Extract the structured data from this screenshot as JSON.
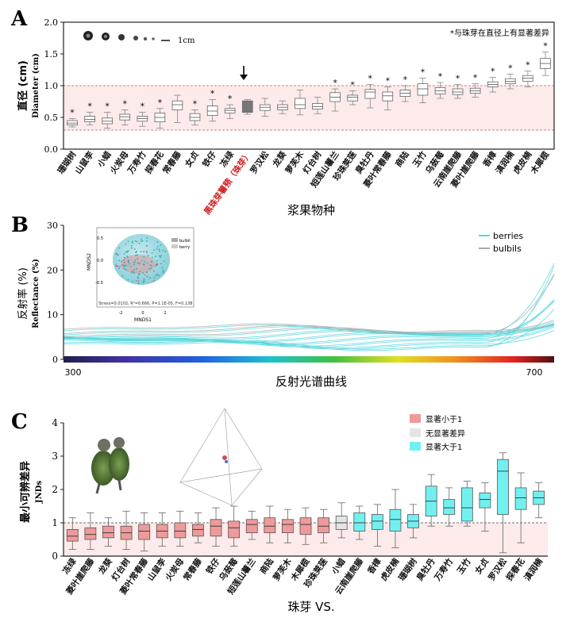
{
  "chart_data": [
    {
      "panel": "A",
      "type": "box",
      "ylabel_cn": "直径 (cm)",
      "ylabel_en": "Diameter (cm)",
      "xlabel": "浆果物种",
      "note": "*与珠芽在直径上有显著差异",
      "scale_label": "1cm",
      "ylim": [
        0,
        2.0
      ],
      "yticks": [
        "0.0",
        "0.5",
        "1.0",
        "1.5",
        "2.0"
      ],
      "band": [
        0.3,
        1.0
      ],
      "categories": [
        "珊瑚树",
        "山鼠李",
        "小蜡",
        "火炭母",
        "万寿竹",
        "探春花",
        "常春藤",
        "女贞",
        "铁仔",
        "冻绿",
        "黑珠芽薯蓣（珠芽）",
        "罗汉松",
        "龙葵",
        "萝芙木",
        "灯台树",
        "短莲山薯兰",
        "珍珠荚蒾",
        "臭牡丹",
        "菱叶常春藤",
        "商陆",
        "玉竹",
        "乌蔹莓",
        "云南崖爬藤",
        "菱叶崖爬藤",
        "香樟",
        "滇润楠",
        "虎皮楠",
        "木犀榄"
      ],
      "highlight": "黑珠芽薯蓣（珠芽）",
      "boxes": [
        [
          0.35,
          0.38,
          0.41,
          0.45,
          0.48
        ],
        [
          0.38,
          0.43,
          0.47,
          0.52,
          0.58
        ],
        [
          0.33,
          0.4,
          0.44,
          0.49,
          0.58
        ],
        [
          0.38,
          0.46,
          0.51,
          0.55,
          0.62
        ],
        [
          0.36,
          0.44,
          0.48,
          0.52,
          0.58
        ],
        [
          0.33,
          0.43,
          0.5,
          0.57,
          0.64
        ],
        [
          0.42,
          0.62,
          0.7,
          0.76,
          0.85
        ],
        [
          0.38,
          0.45,
          0.5,
          0.56,
          0.62
        ],
        [
          0.44,
          0.53,
          0.6,
          0.68,
          0.78
        ],
        [
          0.48,
          0.57,
          0.61,
          0.64,
          0.7
        ],
        [
          0.55,
          0.58,
          0.67,
          0.76,
          0.78
        ],
        [
          0.52,
          0.61,
          0.66,
          0.7,
          0.8
        ],
        [
          0.56,
          0.62,
          0.66,
          0.7,
          0.76
        ],
        [
          0.54,
          0.64,
          0.7,
          0.8,
          0.93
        ],
        [
          0.56,
          0.63,
          0.67,
          0.72,
          0.82
        ],
        [
          0.6,
          0.75,
          0.82,
          0.89,
          0.95
        ],
        [
          0.7,
          0.76,
          0.82,
          0.85,
          0.92
        ],
        [
          0.65,
          0.8,
          0.9,
          0.94,
          1.02
        ],
        [
          0.62,
          0.76,
          0.84,
          0.9,
          0.98
        ],
        [
          0.75,
          0.83,
          0.88,
          0.93,
          1.0
        ],
        [
          0.73,
          0.85,
          0.95,
          1.03,
          1.12
        ],
        [
          0.8,
          0.87,
          0.92,
          0.97,
          1.05
        ],
        [
          0.8,
          0.86,
          0.9,
          0.95,
          1.02
        ],
        [
          0.82,
          0.88,
          0.92,
          0.96,
          1.03
        ],
        [
          0.9,
          0.98,
          1.02,
          1.06,
          1.13
        ],
        [
          0.95,
          1.03,
          1.07,
          1.11,
          1.18
        ],
        [
          0.98,
          1.07,
          1.12,
          1.16,
          1.23
        ],
        [
          1.16,
          1.27,
          1.35,
          1.43,
          1.53
        ]
      ],
      "significant": [
        1,
        1,
        1,
        1,
        1,
        1,
        0,
        1,
        1,
        1,
        0,
        0,
        0,
        0,
        0,
        1,
        1,
        1,
        1,
        1,
        1,
        1,
        1,
        1,
        1,
        1,
        1,
        1
      ]
    },
    {
      "panel": "B",
      "type": "line",
      "ylabel_cn": "反射率 (%)",
      "ylabel_en": "Reflectance (%)",
      "xlabel": "反射光谱曲线",
      "xlim": [
        300,
        700
      ],
      "xticks": [
        "300",
        "700"
      ],
      "ylim": [
        0,
        30
      ],
      "yticks": [
        "0",
        "10",
        "20",
        "30"
      ],
      "legend": [
        "berries",
        "bulbils"
      ],
      "colors": {
        "berries": "#4fd6dc",
        "bulbils": "#a8a8a8"
      },
      "inset": {
        "xlabel": "MNDS1",
        "ylabel": "MNDS2",
        "legend": [
          "bulbil",
          "berry"
        ],
        "stress_text": "Stress=0.0102, R²=0.666, P=1.1E-05, F=0.138",
        "xticks": [
          "-2",
          "0",
          "2"
        ],
        "yticks": [
          "0.5",
          "0.0",
          "-0.5"
        ]
      }
    },
    {
      "panel": "C",
      "type": "box",
      "ylabel_cn": "最小可辨差异",
      "ylabel_en": "JNDs",
      "xlabel": "珠芽 VS.",
      "ylim": [
        0,
        4
      ],
      "yticks": [
        "0",
        "1",
        "2",
        "3",
        "4"
      ],
      "legend": [
        "显著小于1",
        "无显著差异",
        "显著大于1"
      ],
      "colors": {
        "lt1": "#ef9a9a",
        "ns": "#e4e4e4",
        "gt1": "#72f0f0"
      },
      "categories": [
        "冻绿",
        "菱叶崖爬藤",
        "龙葵",
        "灯台树",
        "菱叶常春藤",
        "山鼠李",
        "火炭母",
        "常春藤",
        "铁仔",
        "乌蔹莓",
        "短莲山薯兰",
        "商陆",
        "萝芙木",
        "木犀榄",
        "珍珠荚蒾",
        "小蜡",
        "云南崖爬藤",
        "香樟",
        "虎皮楠",
        "珊瑚树",
        "臭牡丹",
        "万寿竹",
        "玉竹",
        "女贞",
        "罗汉松",
        "探春花",
        "滇润楠"
      ],
      "groups": [
        "lt1",
        "lt1",
        "lt1",
        "lt1",
        "lt1",
        "lt1",
        "lt1",
        "lt1",
        "lt1",
        "lt1",
        "lt1",
        "lt1",
        "lt1",
        "lt1",
        "lt1",
        "ns",
        "gt1",
        "gt1",
        "gt1",
        "gt1",
        "gt1",
        "gt1",
        "gt1",
        "gt1",
        "gt1",
        "gt1",
        "gt1"
      ],
      "boxes": [
        [
          0.2,
          0.45,
          0.6,
          0.8,
          1.15
        ],
        [
          0.2,
          0.5,
          0.65,
          0.85,
          1.3
        ],
        [
          0.3,
          0.55,
          0.7,
          0.9,
          1.15
        ],
        [
          0.2,
          0.5,
          0.7,
          0.9,
          1.35
        ],
        [
          0.15,
          0.5,
          0.75,
          0.95,
          1.3
        ],
        [
          0.3,
          0.55,
          0.75,
          0.95,
          1.3
        ],
        [
          0.3,
          0.55,
          0.75,
          1.0,
          1.35
        ],
        [
          0.4,
          0.6,
          0.8,
          0.95,
          1.3
        ],
        [
          0.3,
          0.6,
          0.9,
          1.1,
          1.45
        ],
        [
          0.3,
          0.55,
          0.85,
          1.05,
          1.5
        ],
        [
          0.5,
          0.7,
          0.95,
          1.1,
          1.35
        ],
        [
          0.4,
          0.7,
          0.9,
          1.15,
          1.5
        ],
        [
          0.4,
          0.7,
          0.95,
          1.1,
          1.4
        ],
        [
          0.35,
          0.65,
          0.95,
          1.15,
          1.45
        ],
        [
          0.4,
          0.7,
          0.9,
          1.15,
          1.4
        ],
        [
          0.55,
          0.8,
          1.0,
          1.2,
          1.6
        ],
        [
          0.5,
          0.75,
          1.0,
          1.3,
          1.5
        ],
        [
          0.3,
          0.8,
          1.05,
          1.25,
          1.55
        ],
        [
          0.25,
          0.75,
          1.1,
          1.4,
          2.0
        ],
        [
          0.55,
          0.85,
          1.05,
          1.25,
          1.55
        ],
        [
          0.9,
          1.2,
          1.65,
          2.1,
          2.45
        ],
        [
          0.9,
          1.25,
          1.45,
          1.7,
          2.05
        ],
        [
          0.9,
          1.05,
          1.45,
          2.05,
          2.25
        ],
        [
          0.75,
          1.45,
          1.7,
          1.9,
          2.2
        ],
        [
          0.1,
          1.25,
          2.55,
          2.9,
          3.1
        ],
        [
          0.4,
          1.4,
          1.75,
          2.05,
          2.5
        ],
        [
          1.15,
          1.55,
          1.75,
          1.95,
          2.2
        ]
      ]
    }
  ],
  "panel_letters": [
    "A",
    "B",
    "C"
  ],
  "arrow_target": "黑珠芽薯蓣（珠芽）"
}
